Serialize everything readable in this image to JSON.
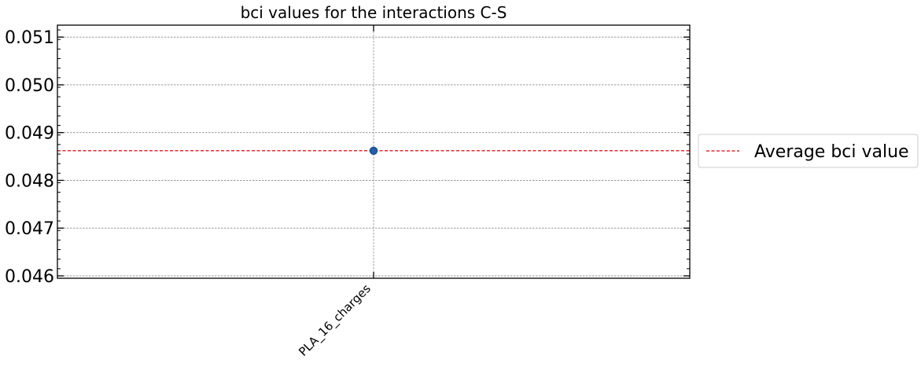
{
  "chart_data": {
    "type": "scatter",
    "title": "bci values for the interactions C-S",
    "xlabel": "",
    "ylabel": "",
    "categories": [
      "PLA_16_charges"
    ],
    "series": [
      {
        "values": [
          0.04862
        ],
        "color": "#1f5fa8"
      }
    ],
    "average_line": {
      "label": "Average bci value",
      "value": 0.04862,
      "color": "#e8000b",
      "style": "dashed"
    },
    "ylim": [
      0.04595,
      0.05125
    ],
    "yticks": [
      0.046,
      0.047,
      0.048,
      0.049,
      0.05,
      0.051
    ],
    "ytick_labels": [
      "0.046",
      "0.047",
      "0.048",
      "0.049",
      "0.050",
      "0.051"
    ],
    "grid": true,
    "legend_position": "right, outside plot"
  }
}
